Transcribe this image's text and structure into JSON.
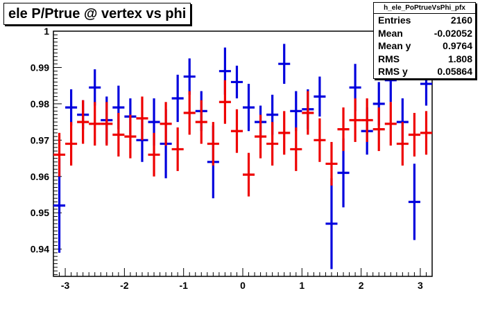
{
  "title": "ele P/Ptrue @ vertex vs phi",
  "stats": {
    "name": "h_ele_PoPtrueVsPhi_pfx",
    "rows": [
      {
        "label": "Entries",
        "value": "2160"
      },
      {
        "label": "Mean",
        "value": "-0.02052"
      },
      {
        "label": "Mean y",
        "value": "0.9764"
      },
      {
        "label": "RMS",
        "value": "1.808"
      },
      {
        "label": "RMS y",
        "value": "0.05864"
      }
    ]
  },
  "colors": {
    "series_blue": "#0000dd",
    "series_red": "#ee0000",
    "axis": "#000000"
  },
  "chart_data": {
    "type": "scatter",
    "title": "ele P/Ptrue @ vertex vs phi",
    "xlabel": "",
    "ylabel": "",
    "xlim": [
      -3.2,
      3.2
    ],
    "ylim": [
      0.9325,
      1.0
    ],
    "x_ticks": [
      -3,
      -2,
      -1,
      0,
      1,
      2,
      3
    ],
    "x_tick_labels": [
      "-3",
      "-2",
      "-1",
      "0",
      "1",
      "2",
      "3"
    ],
    "y_ticks": [
      0.94,
      0.95,
      0.96,
      0.97,
      0.98,
      0.99,
      1.0
    ],
    "y_tick_labels": [
      "0.94",
      "0.95",
      "0.96",
      "0.97",
      "0.98",
      "0.99",
      "1"
    ],
    "grid": false,
    "x_bin_half_width": 0.1,
    "series": [
      {
        "color": "blue",
        "x": [
          -3.1,
          -2.9,
          -2.7,
          -2.5,
          -2.3,
          -2.1,
          -1.9,
          -1.7,
          -1.5,
          -1.3,
          -1.1,
          -0.9,
          -0.7,
          -0.5,
          -0.3,
          -0.1,
          0.1,
          0.3,
          0.5,
          0.7,
          0.9,
          1.1,
          1.3,
          1.5,
          1.7,
          1.9,
          2.1,
          2.3,
          2.5,
          2.7,
          2.9,
          3.1
        ],
        "y": [
          0.952,
          0.979,
          0.977,
          0.9845,
          0.9755,
          0.979,
          0.9765,
          0.97,
          0.975,
          0.969,
          0.9815,
          0.9875,
          0.978,
          0.964,
          0.989,
          0.986,
          0.979,
          0.975,
          0.977,
          0.991,
          0.978,
          0.9785,
          0.982,
          0.947,
          0.961,
          0.9845,
          0.9725,
          0.98,
          0.9865,
          0.975,
          0.953,
          0.9855
        ],
        "err": [
          0.013,
          0.005,
          0.004,
          0.005,
          0.0065,
          0.006,
          0.005,
          0.006,
          0.0065,
          0.0095,
          0.0065,
          0.005,
          0.0055,
          0.01,
          0.0065,
          0.0045,
          0.0065,
          0.0045,
          0.0055,
          0.0055,
          0.0055,
          0.0055,
          0.0055,
          0.0125,
          0.0095,
          0.0065,
          0.0065,
          0.006,
          0.006,
          0.0065,
          0.0105,
          0.006
        ]
      },
      {
        "color": "red",
        "x": [
          -3.1,
          -2.9,
          -2.7,
          -2.5,
          -2.3,
          -2.1,
          -1.9,
          -1.7,
          -1.5,
          -1.3,
          -1.1,
          -0.9,
          -0.7,
          -0.5,
          -0.3,
          -0.1,
          0.1,
          0.3,
          0.5,
          0.7,
          0.9,
          1.1,
          1.3,
          1.5,
          1.7,
          1.9,
          2.1,
          2.3,
          2.5,
          2.7,
          2.9,
          3.1
        ],
        "y": [
          0.966,
          0.969,
          0.975,
          0.9745,
          0.9745,
          0.9715,
          0.971,
          0.976,
          0.966,
          0.9745,
          0.9675,
          0.9775,
          0.975,
          0.969,
          0.9805,
          0.9725,
          0.9605,
          0.971,
          0.969,
          0.972,
          0.9675,
          0.9775,
          0.97,
          0.9635,
          0.973,
          0.9755,
          0.9755,
          0.973,
          0.9745,
          0.969,
          0.9715,
          0.972
        ]
      }
    ]
  }
}
